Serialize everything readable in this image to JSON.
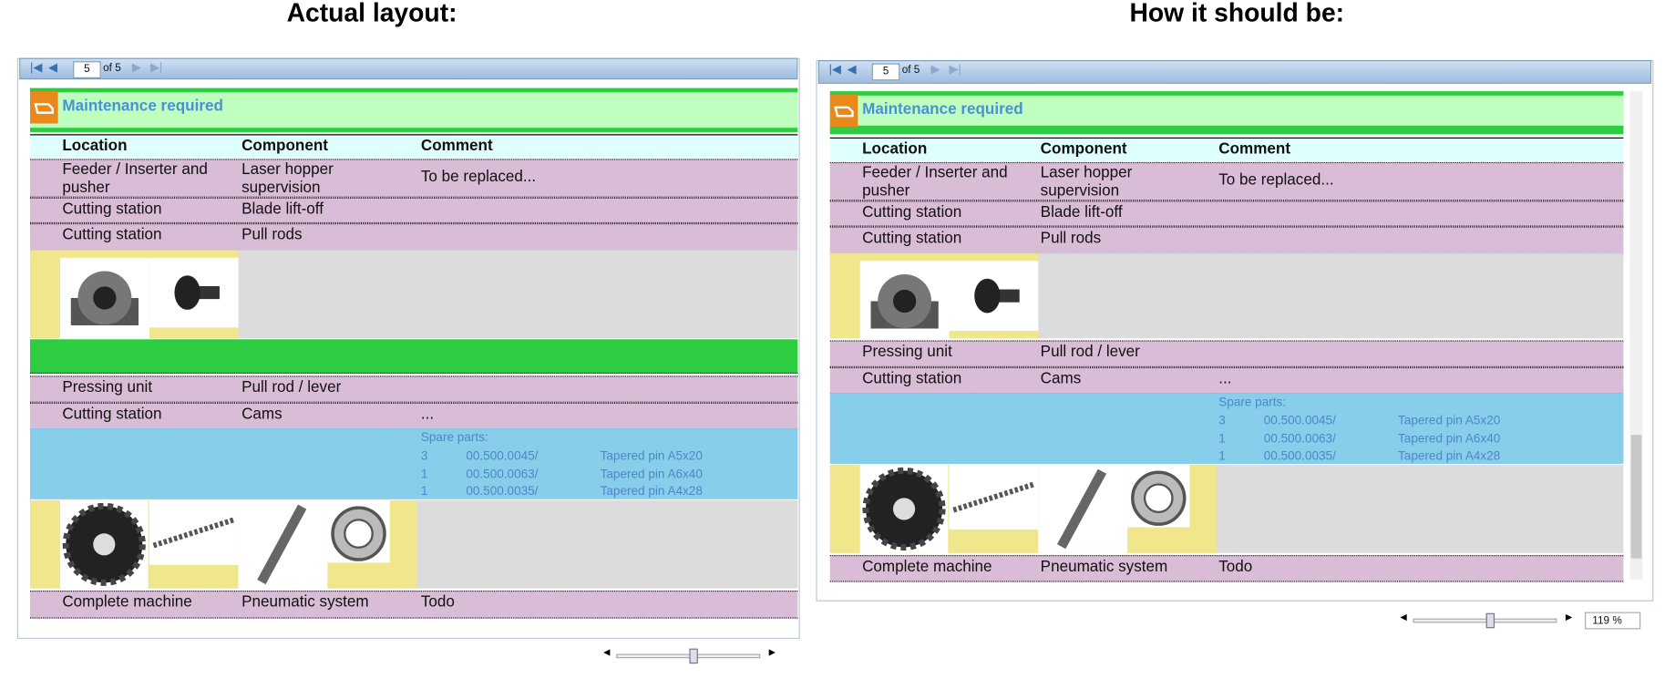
{
  "titles": [
    "Actual layout:",
    "How it should be:"
  ],
  "toolbar": {
    "page": "5",
    "of": "of 5"
  },
  "section_title": "Maintenance required",
  "columns": [
    "Location",
    "Component",
    "Comment"
  ],
  "rows": [
    {
      "location": "Feeder / Inserter and pusher",
      "component": "Laser hopper supervision",
      "comment": "To be replaced..."
    },
    {
      "location": "Cutting station",
      "component": "Blade lift-off"
    },
    {
      "location": "Cutting station",
      "component": "Pull rods"
    },
    {
      "location": "Pressing unit",
      "component": "Pull rod / lever"
    },
    {
      "location": "Cutting station",
      "component": "Cams",
      "comment": "..."
    },
    {
      "location": "Complete machine",
      "component": "Pneumatic system",
      "comment": "Todo"
    }
  ],
  "spare_parts": {
    "label": "Spare parts:",
    "items": [
      [
        "3",
        "00.500.0045/",
        "Tapered pin A5x20"
      ],
      [
        "1",
        "00.500.0063/",
        "Tapered pin A6x40"
      ],
      [
        "1",
        "00.500.0035/",
        "Tapered pin A4x28"
      ]
    ]
  },
  "zoom": "119 %"
}
